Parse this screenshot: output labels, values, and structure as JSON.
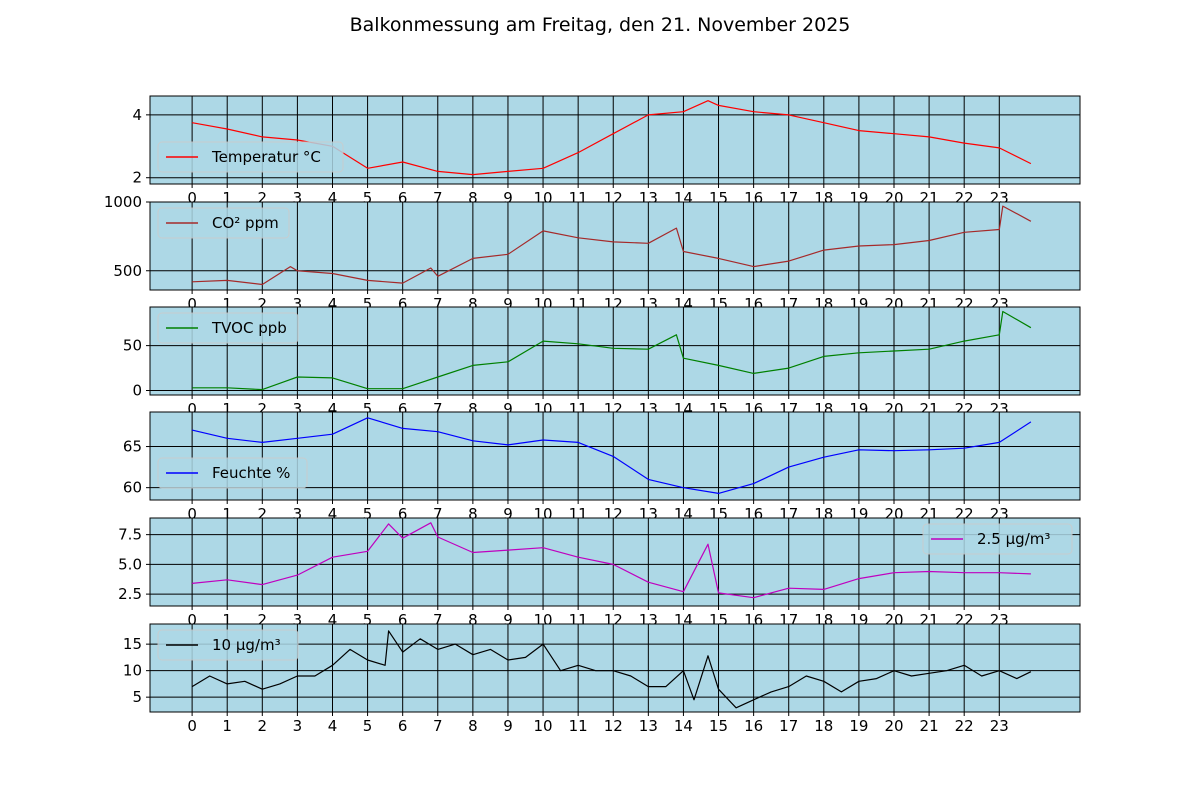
{
  "figure": {
    "title": "Balkonmessung am Freitag, den 21. November 2025"
  },
  "colors": {
    "panel_bg": "#add8e6",
    "grid": "#000000"
  },
  "chart_data": [
    {
      "type": "line",
      "name": "Temperatur °C",
      "color": "#ff0000",
      "legend_pos": "center-left",
      "xlim": [
        -1.2,
        25.3
      ],
      "ylim": [
        1.8,
        4.6
      ],
      "yticks": [
        2,
        4
      ],
      "ytick_labels": [
        "2",
        "4"
      ],
      "xticks": [
        0,
        1,
        2,
        3,
        4,
        5,
        6,
        7,
        8,
        9,
        10,
        11,
        12,
        13,
        14,
        15,
        16,
        17,
        18,
        19,
        20,
        21,
        22,
        23
      ],
      "x": [
        0,
        1,
        2,
        3,
        4,
        5,
        6,
        7,
        8,
        9,
        10,
        11,
        12,
        13,
        14,
        14.7,
        15,
        16,
        17,
        18,
        19,
        20,
        21,
        22,
        23,
        23.9
      ],
      "y": [
        3.75,
        3.55,
        3.3,
        3.2,
        3.0,
        2.3,
        2.5,
        2.2,
        2.1,
        2.2,
        2.3,
        2.8,
        3.4,
        4.0,
        4.1,
        4.45,
        4.3,
        4.1,
        4.0,
        3.75,
        3.5,
        3.4,
        3.3,
        3.1,
        2.95,
        2.45
      ]
    },
    {
      "type": "line",
      "name": "CO² ppm",
      "color": "#a52a2a",
      "legend_pos": "top-left",
      "xlim": [
        -1.2,
        25.3
      ],
      "ylim": [
        360,
        1000
      ],
      "yticks": [
        500,
        1000
      ],
      "ytick_labels": [
        "500",
        "1000"
      ],
      "xticks": [
        0,
        1,
        2,
        3,
        4,
        5,
        6,
        7,
        8,
        9,
        10,
        11,
        12,
        13,
        14,
        15,
        16,
        17,
        18,
        19,
        20,
        21,
        22,
        23
      ],
      "x": [
        0,
        1,
        2,
        2.8,
        3,
        4,
        5,
        6,
        6.8,
        7,
        8,
        9,
        10,
        11,
        12,
        13,
        13.8,
        14,
        15,
        16,
        17,
        18,
        19,
        20,
        21,
        22,
        23,
        23.1,
        23.9
      ],
      "y": [
        420,
        430,
        400,
        530,
        500,
        480,
        430,
        410,
        520,
        460,
        590,
        620,
        790,
        740,
        710,
        700,
        810,
        640,
        590,
        530,
        570,
        650,
        680,
        690,
        720,
        780,
        800,
        970,
        860
      ]
    },
    {
      "type": "line",
      "name": "TVOC ppb",
      "color": "#008000",
      "legend_pos": "top-left",
      "xlim": [
        -1.2,
        25.3
      ],
      "ylim": [
        -5,
        93
      ],
      "yticks": [
        0,
        50
      ],
      "ytick_labels": [
        "0",
        "50"
      ],
      "xticks": [
        0,
        1,
        2,
        3,
        4,
        5,
        6,
        7,
        8,
        9,
        10,
        11,
        12,
        13,
        13.8,
        14,
        15,
        16,
        17,
        18,
        19,
        20,
        21,
        22,
        23,
        23.1,
        23.9
      ],
      "x": [
        0,
        1,
        2,
        3,
        4,
        5,
        6,
        7,
        8,
        9,
        10,
        11,
        12,
        13,
        13.8,
        14,
        15,
        16,
        17,
        18,
        19,
        20,
        21,
        22,
        23,
        23.1,
        23.9
      ],
      "y": [
        3,
        3,
        1,
        15,
        14,
        2,
        2,
        15,
        28,
        32,
        55,
        52,
        47,
        46,
        62,
        36,
        28,
        19,
        25,
        38,
        42,
        44,
        46,
        55,
        62,
        88,
        70
      ]
    },
    {
      "type": "line",
      "name": "Feuchte %",
      "color": "#0000ff",
      "legend_pos": "center-left",
      "xlim": [
        -1.2,
        25.3
      ],
      "ylim": [
        58.5,
        69.2
      ],
      "yticks": [
        60,
        65
      ],
      "ytick_labels": [
        "60",
        "65"
      ],
      "xticks": [
        0,
        1,
        2,
        3,
        4,
        5,
        6,
        7,
        8,
        9,
        10,
        11,
        12,
        13,
        14,
        15,
        16,
        17,
        18,
        19,
        20,
        21,
        22,
        23
      ],
      "x": [
        0,
        1,
        2,
        3,
        4,
        5,
        6,
        7,
        8,
        9,
        10,
        11,
        12,
        13,
        14,
        15,
        16,
        17,
        18,
        19,
        20,
        21,
        22,
        23,
        23.9
      ],
      "y": [
        67,
        66,
        65.5,
        66,
        66.5,
        68.5,
        67.2,
        66.8,
        65.7,
        65.2,
        65.8,
        65.5,
        63.8,
        61,
        60,
        59.3,
        60.5,
        62.5,
        63.7,
        64.6,
        64.5,
        64.6,
        64.8,
        65.5,
        68
      ]
    },
    {
      "type": "line",
      "name": "2.5 µg/m³",
      "color": "#bf00bf",
      "legend_pos": "top-right",
      "xlim": [
        -1.2,
        25.3
      ],
      "ylim": [
        1.5,
        8.9
      ],
      "yticks": [
        2.5,
        5.0,
        7.5
      ],
      "ytick_labels": [
        "2.5",
        "5.0",
        "7.5"
      ],
      "xticks": [
        0,
        1,
        2,
        3,
        4,
        5,
        6,
        7,
        8,
        9,
        10,
        11,
        12,
        13,
        14,
        14.7,
        15,
        16,
        17,
        18,
        19,
        20,
        21,
        22,
        23,
        23.9
      ],
      "x": [
        0,
        1,
        2,
        3,
        4,
        5,
        5.6,
        6,
        6.8,
        7,
        8,
        9,
        10,
        11,
        12,
        13,
        14,
        14.7,
        15,
        16,
        17,
        18,
        19,
        20,
        21,
        22,
        23,
        23.9
      ],
      "y": [
        3.4,
        3.7,
        3.3,
        4.1,
        5.6,
        6.1,
        8.4,
        7.2,
        8.5,
        7.3,
        6.0,
        6.2,
        6.4,
        5.6,
        5.0,
        3.5,
        2.7,
        6.7,
        2.6,
        2.2,
        3.0,
        2.9,
        3.8,
        4.3,
        4.4,
        4.3,
        4.3,
        4.2
      ]
    },
    {
      "type": "line",
      "name": "10 µg/m³",
      "color": "#000000",
      "legend_pos": "top-left",
      "xlim": [
        -1.2,
        25.3
      ],
      "ylim": [
        2.2,
        18.8
      ],
      "yticks": [
        5,
        10,
        15
      ],
      "ytick_labels": [
        "5",
        "10",
        "15"
      ],
      "xticks": [
        0,
        1,
        2,
        3,
        4,
        5,
        6,
        7,
        8,
        9,
        10,
        11,
        12,
        13,
        14,
        15,
        16,
        17,
        18,
        19,
        20,
        21,
        22,
        23
      ],
      "xtick_labels": [
        "0",
        "1",
        "2",
        "3",
        "4",
        "5",
        "6",
        "7",
        "8",
        "9",
        "10",
        "11",
        "12",
        "13",
        "14",
        "15",
        "16",
        "17",
        "18",
        "19",
        "20",
        "21",
        "22",
        "23"
      ],
      "x": [
        0,
        0.5,
        1,
        1.5,
        2,
        2.5,
        3,
        3.5,
        4,
        4.5,
        5,
        5.5,
        5.6,
        6,
        6.5,
        7,
        7.5,
        8,
        8.5,
        9,
        9.5,
        10,
        10.5,
        11,
        11.5,
        12,
        12.5,
        13,
        13.5,
        14,
        14.3,
        14.7,
        15,
        15.5,
        16,
        16.5,
        17,
        17.5,
        18,
        18.5,
        19,
        19.5,
        20,
        20.5,
        21,
        21.5,
        22,
        22.5,
        23,
        23.5,
        23.9
      ],
      "y": [
        7,
        9,
        7.5,
        8,
        6.5,
        7.5,
        9,
        9,
        11,
        14,
        12,
        11,
        17.5,
        13.5,
        16,
        14,
        15,
        13,
        14,
        12,
        12.5,
        15,
        10,
        11,
        10,
        10,
        9,
        7,
        7,
        10,
        4.5,
        12.8,
        6.5,
        3,
        4.5,
        6,
        7,
        9,
        8,
        6,
        8,
        8.5,
        10,
        9,
        9.5,
        10,
        11,
        9,
        10,
        8.5,
        9.8
      ]
    }
  ]
}
